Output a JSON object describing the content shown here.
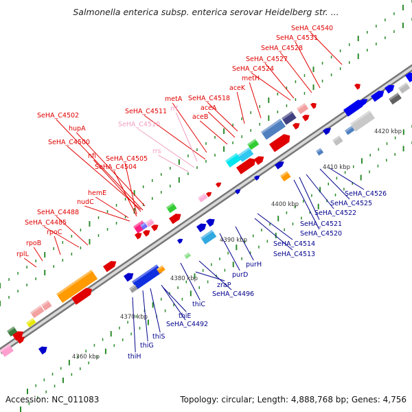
{
  "title": "Salmonella enterica subsp. enterica serovar Heidelberg str. ...",
  "footer": {
    "accession": "Accession: NC_011083",
    "topology": "Topology: circular; Length: 4,888,768 bp; Genes: 4,756"
  },
  "colors": {
    "forward_label": "#e00000",
    "reverse_label": "#00008b",
    "rna_label": "#f0a0c0",
    "backbone": "#888888",
    "tick": "#2a8a2a"
  },
  "scale_ticks": [
    "4360 kbp",
    "4370 kbp",
    "4380 kbp",
    "4390 kbp",
    "4400 kbp",
    "4410 kbp",
    "4420 kbp"
  ],
  "forward_labels": [
    "SeHA_C4540",
    "SeHA_C4531",
    "SeHA_C4528",
    "SeHA_C4527",
    "SeHA_C4524",
    "metH",
    "aceK",
    "SeHA_C4518",
    "aceA",
    "aceB",
    "metA",
    "SeHA_C4511",
    "rrf",
    "SeHA_C4510",
    "SeHA_C4502",
    "hupA",
    "SeHA_C4500",
    "nfi",
    "SeHA_C4505",
    "SeHA_C4504",
    "rrs",
    "hemE",
    "nudC",
    "SeHA_C4488",
    "SeHA_C4485",
    "rpoC",
    "rpoB",
    "rplL"
  ],
  "reverse_labels": [
    "SeHA_C4526",
    "SeHA_C4525",
    "SeHA_C4522",
    "SeHA_C4521",
    "SeHA_C4520",
    "SeHA_C4514",
    "SeHA_C4513",
    "purH",
    "purD",
    "zraP",
    "SeHA_C4496",
    "thiC",
    "SeHA_C4492",
    "thiE",
    "thiS",
    "thiG",
    "thiH"
  ]
}
